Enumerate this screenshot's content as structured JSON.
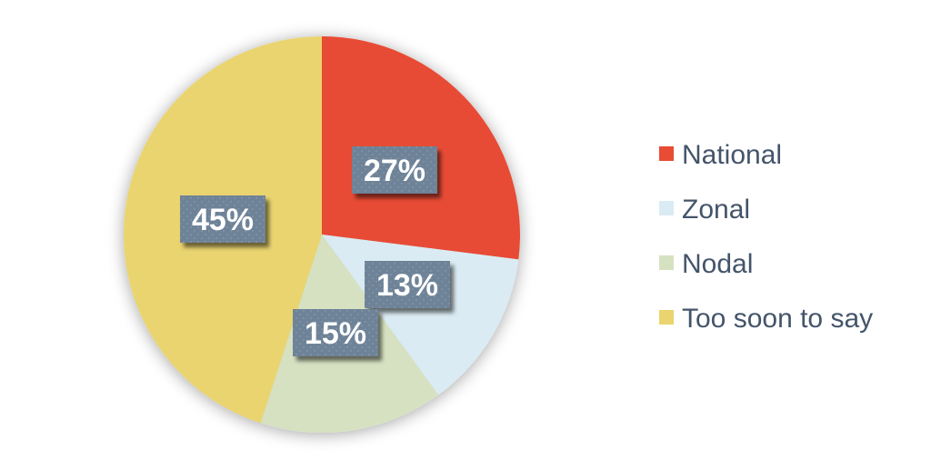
{
  "chart_data": {
    "type": "pie",
    "slices": [
      {
        "label": "National",
        "value": 27,
        "display": "27%",
        "color": "#e84c34"
      },
      {
        "label": "Zonal",
        "value": 13,
        "display": "13%",
        "color": "#daebf3"
      },
      {
        "label": "Nodal",
        "value": 15,
        "display": "15%",
        "color": "#d6e1c2"
      },
      {
        "label": "Too soon to say",
        "value": 45,
        "display": "45%",
        "color": "#ead46f"
      }
    ],
    "start_angle_deg": 0,
    "direction": "clockwise",
    "legend_position": "right",
    "data_label_color": "#6e8398",
    "legend_text_color": "#44546a"
  }
}
